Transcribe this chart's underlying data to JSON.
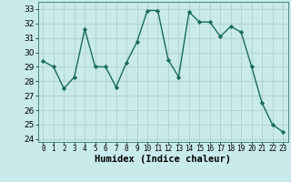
{
  "x": [
    0,
    1,
    2,
    3,
    4,
    5,
    6,
    7,
    8,
    9,
    10,
    11,
    12,
    13,
    14,
    15,
    16,
    17,
    18,
    19,
    20,
    21,
    22,
    23
  ],
  "y": [
    29.4,
    29.0,
    27.5,
    28.3,
    31.6,
    29.0,
    29.0,
    27.6,
    29.3,
    30.7,
    32.9,
    32.9,
    29.5,
    28.3,
    32.8,
    32.1,
    32.1,
    31.1,
    31.8,
    31.4,
    29.0,
    26.5,
    25.0,
    24.5
  ],
  "line_color": "#1a6b5a",
  "marker": "D",
  "marker_size": 2.2,
  "bg_color": "#c8eaea",
  "grid_color": "#b0d0d0",
  "xlabel": "Humidex (Indice chaleur)",
  "ylim": [
    23.8,
    33.5
  ],
  "xlim": [
    -0.5,
    23.5
  ],
  "yticks": [
    24,
    25,
    26,
    27,
    28,
    29,
    30,
    31,
    32,
    33
  ],
  "xticks": [
    0,
    1,
    2,
    3,
    4,
    5,
    6,
    7,
    8,
    9,
    10,
    11,
    12,
    13,
    14,
    15,
    16,
    17,
    18,
    19,
    20,
    21,
    22,
    23
  ],
  "xlabel_fontsize": 7.5,
  "xlabel_fontweight": "bold",
  "ytick_fontsize": 6.5,
  "xtick_fontsize": 5.5
}
